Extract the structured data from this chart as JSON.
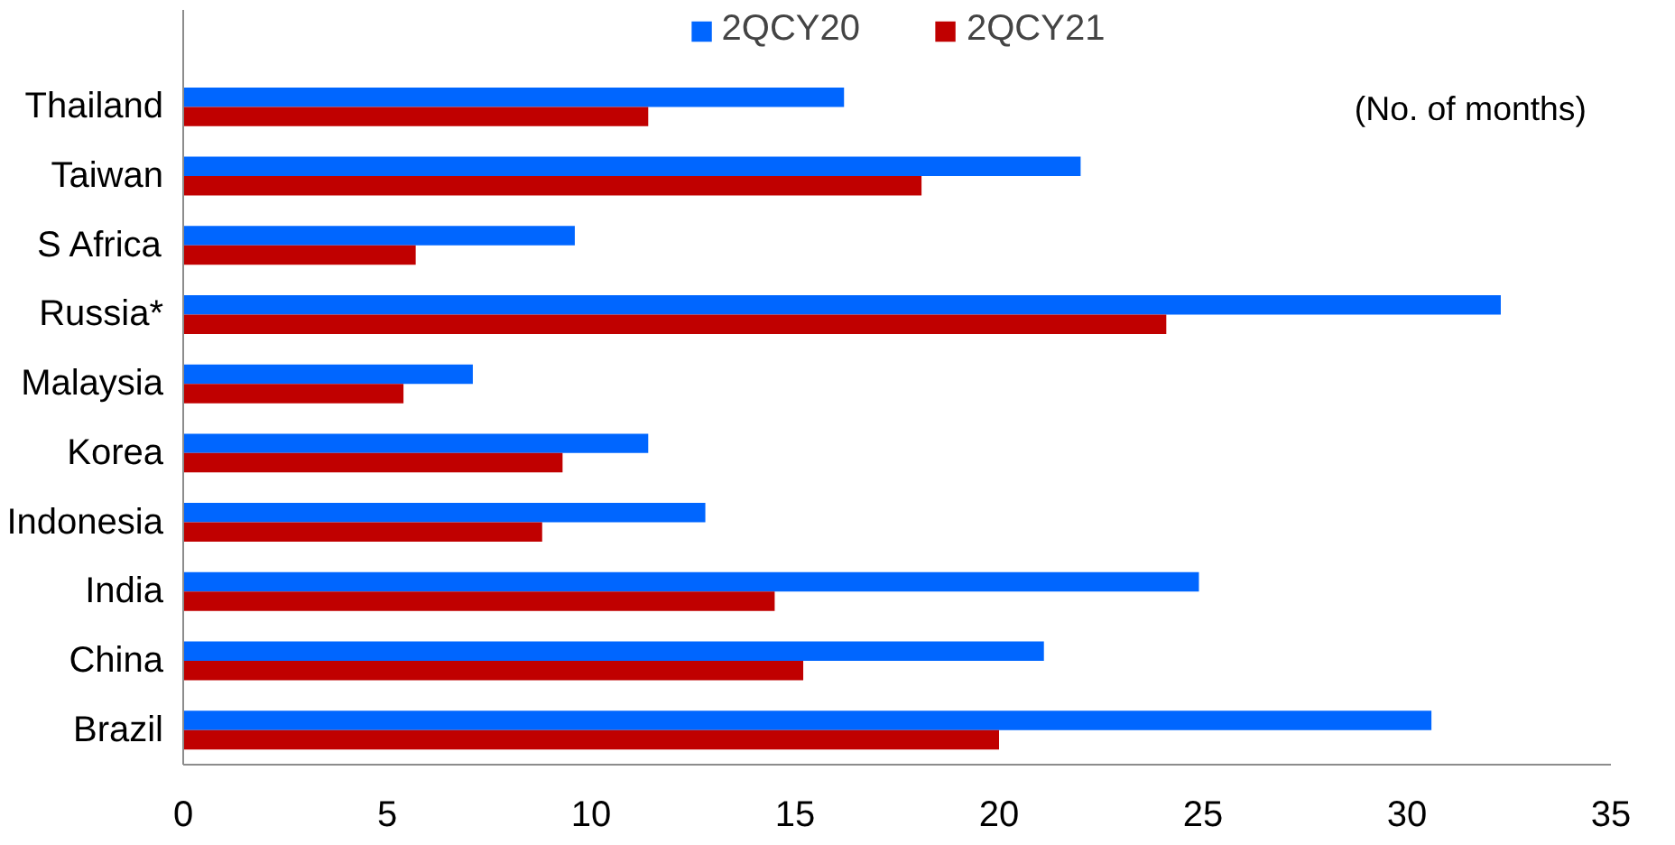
{
  "chart_data": {
    "type": "bar",
    "orientation": "horizontal",
    "categories": [
      "Thailand",
      "Taiwan",
      "S Africa",
      "Russia*",
      "Malaysia",
      "Korea",
      "Indonesia",
      "India",
      "China",
      "Brazil"
    ],
    "series": [
      {
        "name": "2QCY20",
        "color": "#0066ff",
        "values": [
          16.2,
          22.0,
          9.6,
          32.3,
          7.1,
          11.4,
          12.8,
          24.9,
          21.1,
          30.6
        ]
      },
      {
        "name": "2QCY21",
        "color": "#c00000",
        "values": [
          11.4,
          18.1,
          5.7,
          24.1,
          5.4,
          9.3,
          8.8,
          14.5,
          15.2,
          20.0
        ]
      }
    ],
    "xlim": [
      0,
      35
    ],
    "xticks": [
      0,
      5,
      10,
      15,
      20,
      25,
      30,
      35
    ],
    "annotations": [
      "(No. of months)"
    ],
    "grid": false,
    "legend": "top"
  }
}
